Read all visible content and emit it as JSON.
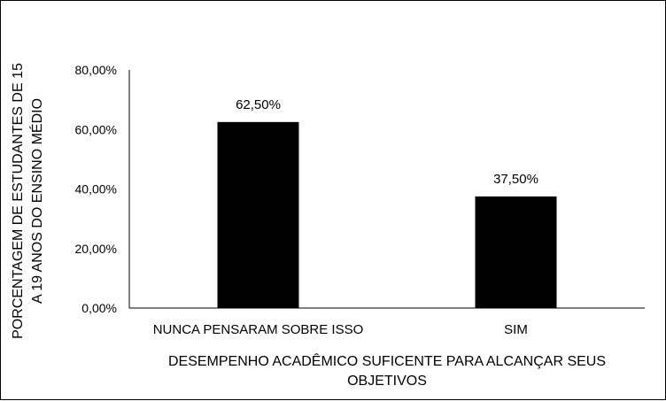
{
  "chart_data": {
    "type": "bar",
    "categories": [
      "NUNCA PENSARAM SOBRE ISSO",
      "SIM"
    ],
    "values": [
      62.5,
      37.5
    ],
    "data_labels": [
      "62,50%",
      "37,50%"
    ],
    "bar_color": "#000000",
    "ylim": [
      0,
      80
    ],
    "yticks": [
      {
        "value": 0,
        "label": "0,00%"
      },
      {
        "value": 20,
        "label": "20,00%"
      },
      {
        "value": 40,
        "label": "40,00%"
      },
      {
        "value": 60,
        "label": "60,00%"
      },
      {
        "value": 80,
        "label": "80,00%"
      }
    ],
    "ylabel_lines": [
      "PORCENTAGEM DE ESTUDANTES DE 15",
      "A 19 ANOS DO ENSINO MÉDIO"
    ],
    "xlabel_lines": [
      "DESEMPENHO ACADÊMICO SUFICENTE PARA ALCANÇAR SEUS",
      "OBJETIVOS"
    ],
    "grid": false,
    "legend": "none"
  }
}
